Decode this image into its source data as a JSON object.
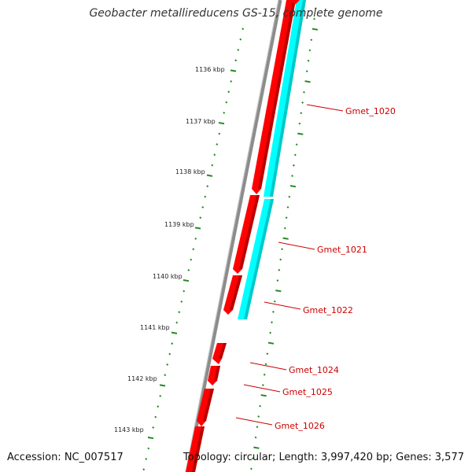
{
  "title": "Geobacter metallireducens GS-15, complete genome",
  "footer": {
    "accession": "Accession: NC_007517",
    "topology": "Topology: circular; Length: 3,997,420 bp; Genes: 3,577"
  },
  "colors": {
    "backbone": "#8c8c8c",
    "forward_gene": "#ff0000",
    "reverse_gene": "#00ffff",
    "tick": "#228b22",
    "label": "#cc0000"
  },
  "scale": {
    "unit": "kbp",
    "labels": [
      "1136 kbp",
      "1137 kbp",
      "1138 kbp",
      "1139 kbp",
      "1140 kbp",
      "1141 kbp",
      "1142 kbp",
      "1143 kbp"
    ]
  },
  "gene_labels": [
    "Gmet_1020",
    "Gmet_1021",
    "Gmet_1022",
    "Gmet_1024",
    "Gmet_1025",
    "Gmet_1026"
  ]
}
